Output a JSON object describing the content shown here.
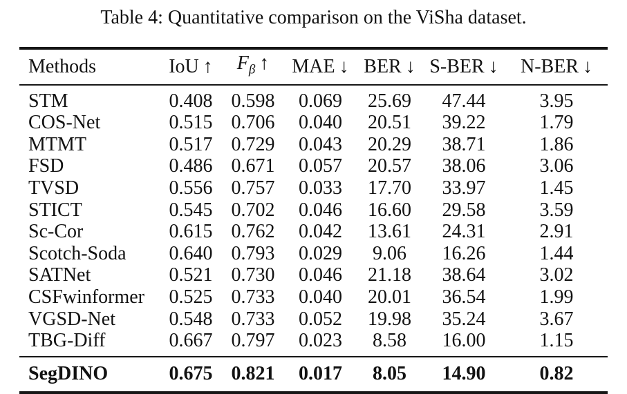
{
  "caption": "Table 4: Quantitative comparison on the ViSha dataset.",
  "colors": {
    "background": "#ffffff",
    "text": "#121212",
    "rule": "#161616"
  },
  "table": {
    "columns": [
      {
        "name": "Methods",
        "sub": "",
        "arrow": "",
        "align": "left",
        "italic": false
      },
      {
        "name": "IoU",
        "sub": "",
        "arrow": "↑",
        "align": "center",
        "italic": false
      },
      {
        "name": "F",
        "sub": "β",
        "arrow": "↑",
        "align": "center",
        "italic": true
      },
      {
        "name": "MAE",
        "sub": "",
        "arrow": "↓",
        "align": "center",
        "italic": false
      },
      {
        "name": "BER",
        "sub": "",
        "arrow": "↓",
        "align": "center",
        "italic": false
      },
      {
        "name": "S-BER",
        "sub": "",
        "arrow": "↓",
        "align": "center",
        "italic": false
      },
      {
        "name": "N-BER",
        "sub": "",
        "arrow": "↓",
        "align": "center",
        "italic": false
      }
    ],
    "rows": [
      {
        "method": "STM",
        "values": [
          "0.408",
          "0.598",
          "0.069",
          "25.69",
          "47.44",
          "3.95"
        ]
      },
      {
        "method": "COS-Net",
        "values": [
          "0.515",
          "0.706",
          "0.040",
          "20.51",
          "39.22",
          "1.79"
        ]
      },
      {
        "method": "MTMT",
        "values": [
          "0.517",
          "0.729",
          "0.043",
          "20.29",
          "38.71",
          "1.86"
        ]
      },
      {
        "method": "FSD",
        "values": [
          "0.486",
          "0.671",
          "0.057",
          "20.57",
          "38.06",
          "3.06"
        ]
      },
      {
        "method": "TVSD",
        "values": [
          "0.556",
          "0.757",
          "0.033",
          "17.70",
          "33.97",
          "1.45"
        ]
      },
      {
        "method": "STICT",
        "values": [
          "0.545",
          "0.702",
          "0.046",
          "16.60",
          "29.58",
          "3.59"
        ]
      },
      {
        "method": "Sc-Cor",
        "values": [
          "0.615",
          "0.762",
          "0.042",
          "13.61",
          "24.31",
          "2.91"
        ]
      },
      {
        "method": "Scotch-Soda",
        "values": [
          "0.640",
          "0.793",
          "0.029",
          "9.06",
          "16.26",
          "1.44"
        ]
      },
      {
        "method": "SATNet",
        "values": [
          "0.521",
          "0.730",
          "0.046",
          "21.18",
          "38.64",
          "3.02"
        ]
      },
      {
        "method": "CSFwinformer",
        "values": [
          "0.525",
          "0.733",
          "0.040",
          "20.01",
          "36.54",
          "1.99"
        ]
      },
      {
        "method": "VGSD-Net",
        "values": [
          "0.548",
          "0.733",
          "0.052",
          "19.98",
          "35.24",
          "3.67"
        ]
      },
      {
        "method": "TBG-Diff",
        "values": [
          "0.667",
          "0.797",
          "0.023",
          "8.58",
          "16.00",
          "1.15"
        ]
      }
    ],
    "highlight_row": {
      "method": "SegDINO",
      "values": [
        "0.675",
        "0.821",
        "0.017",
        "8.05",
        "14.90",
        "0.82"
      ]
    }
  }
}
